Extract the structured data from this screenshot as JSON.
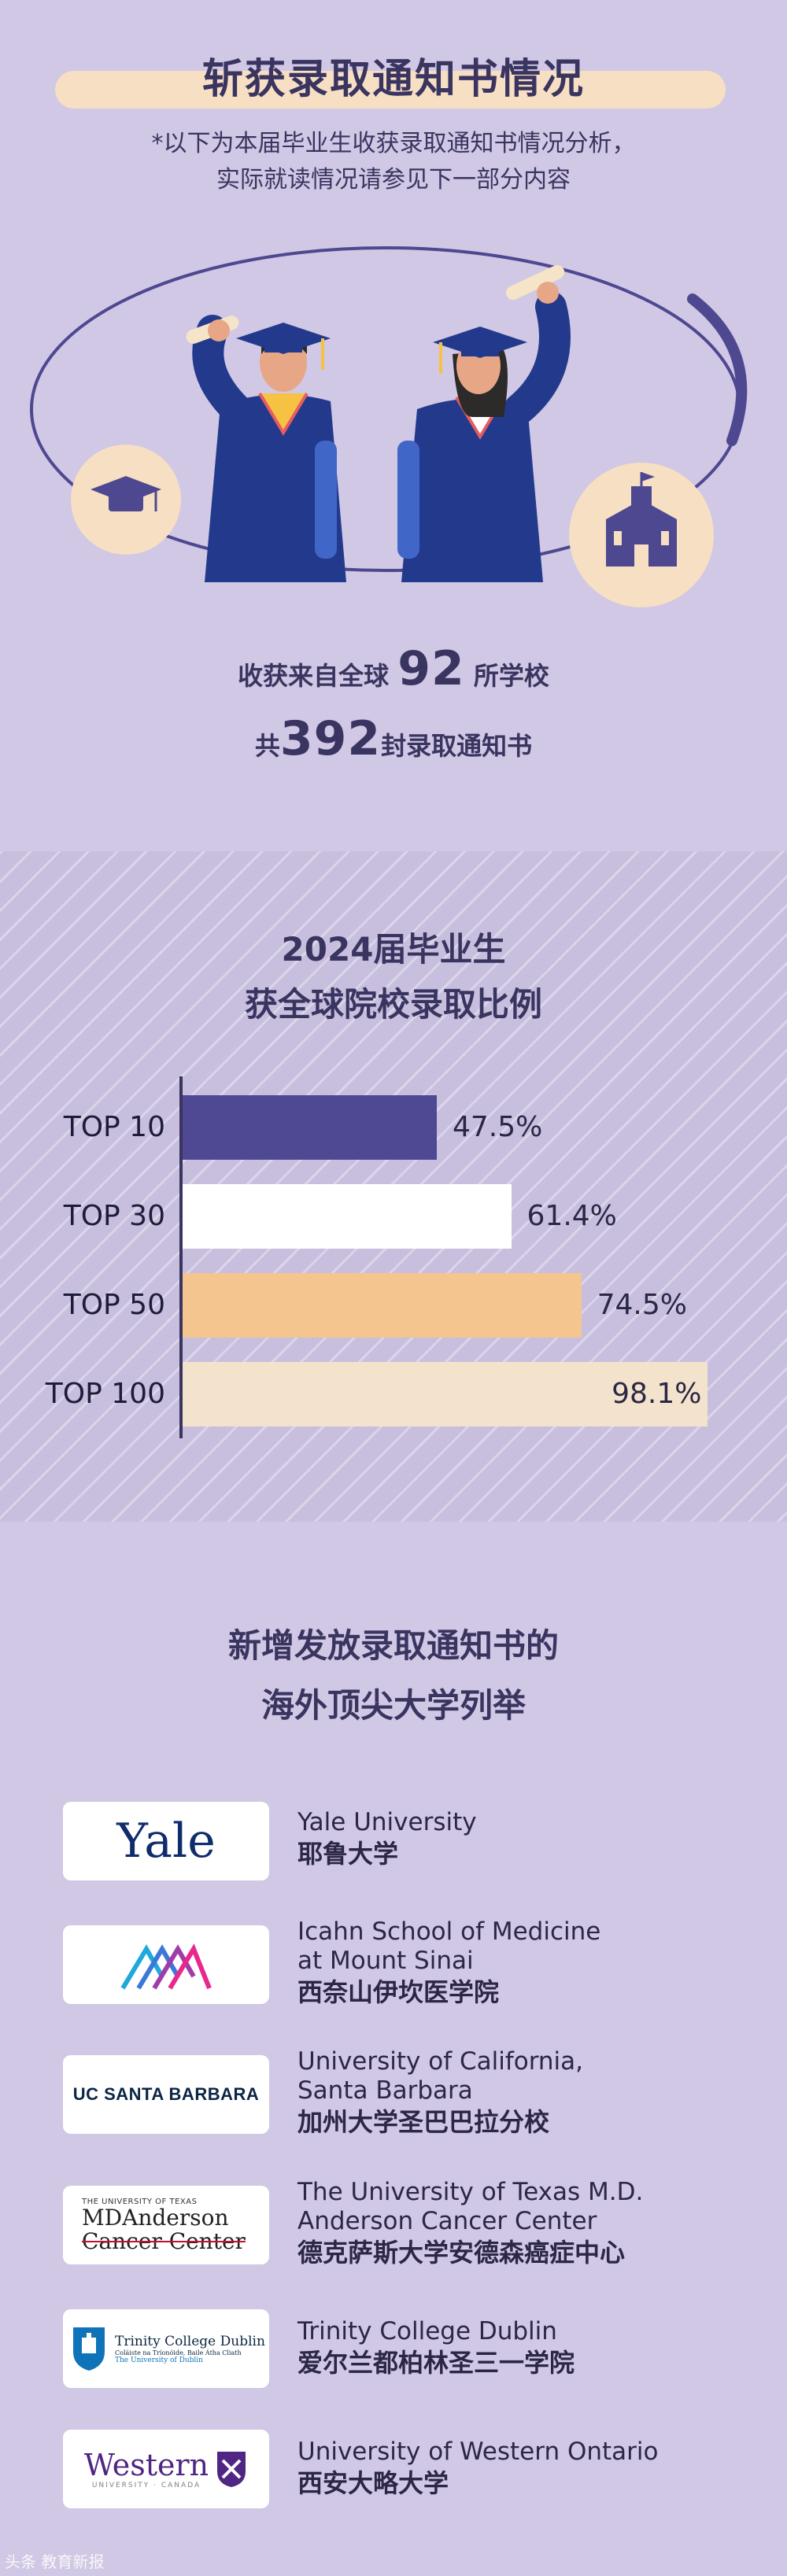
{
  "header": {
    "title": "斩获录取通知书情况",
    "subtitle_line1": "*以下为本届毕业生收获录取通知书情况分析，",
    "subtitle_line2": "实际就读情况请参见下一部分内容"
  },
  "stats": {
    "schools_prefix": "收获来自全球",
    "schools_count": "92",
    "schools_suffix": "所学校",
    "offers_prefix": "共",
    "offers_count": "392",
    "offers_suffix": "封录取通知书"
  },
  "chart_section": {
    "title_line1": "2024届毕业生",
    "title_line2": "获全球院校录取比例"
  },
  "chart_data": {
    "type": "bar",
    "orientation": "horizontal",
    "categories": [
      "TOP 10",
      "TOP 30",
      "TOP 50",
      "TOP 100"
    ],
    "values": [
      47.5,
      61.4,
      74.5,
      98.1
    ],
    "value_labels": [
      "47.5%",
      "61.4%",
      "74.5%",
      "98.1%"
    ],
    "xlim": [
      0,
      100
    ],
    "colors": [
      "#4f4893",
      "#ffffff",
      "#f5c58f",
      "#f4e3cc"
    ],
    "grid": false
  },
  "universities_section": {
    "title_line1": "新增发放录取通知书的",
    "title_line2": "海外顶尖大学列举",
    "items": [
      {
        "en": "Yale University",
        "zh": "耶鲁大学",
        "logo": "yale-logo",
        "logo_text": "Yale"
      },
      {
        "en": "Icahn School of Medicine\nat Mount Sinai",
        "zh": "西奈山伊坎医学院",
        "logo": "mount-sinai-logo",
        "logo_text": ""
      },
      {
        "en": "University of California,\nSanta Barbara",
        "zh": "加州大学圣巴巴拉分校",
        "logo": "ucsb-logo",
        "logo_text": "UC SANTA BARBARA"
      },
      {
        "en": "The University of Texas M.D.\nAnderson Cancer Center",
        "zh": "德克萨斯大学安德森癌症中心",
        "logo": "md-anderson-logo",
        "logo_text": "THE UNIVERSITY OF TEXAS|MDAnderson|Cancer Center"
      },
      {
        "en": "Trinity College Dublin",
        "zh": "爱尔兰都柏林圣三一学院",
        "logo": "trinity-logo",
        "logo_text": "Trinity College Dublin|Coláiste na Tríonóide, Baile Átha Cliath|The University of Dublin"
      },
      {
        "en": "University of Western Ontario",
        "zh": "西安大略大学",
        "logo": "western-logo",
        "logo_text": "Western|UNIVERSITY · CANADA"
      }
    ]
  },
  "watermark": "头条 教育新报"
}
